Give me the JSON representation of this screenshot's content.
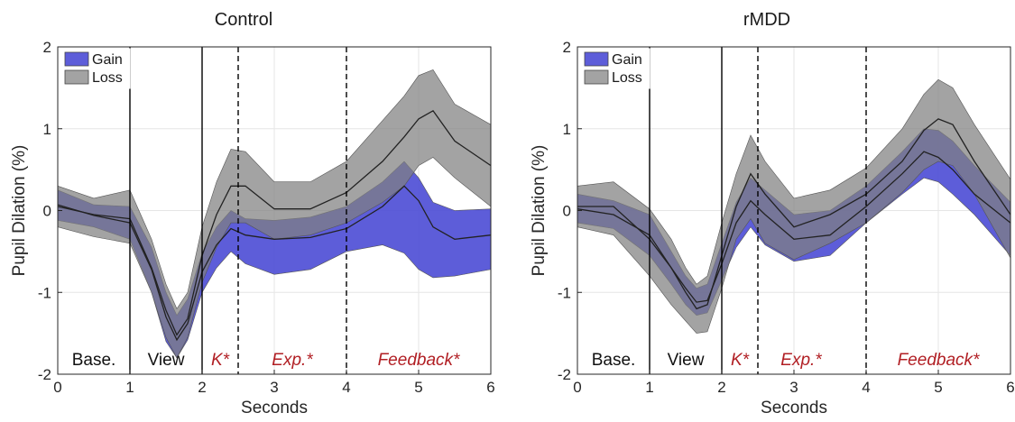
{
  "colors": {
    "gain": "#4f4fd6",
    "loss": "#7f7f7f",
    "phase_label_red": "#b11f24",
    "mean_line": "#222222"
  },
  "chart_data": [
    {
      "type": "area",
      "title": "Control",
      "xlabel": "Seconds",
      "ylabel": "Pupil Dilation (%)",
      "xlim": [
        0,
        6
      ],
      "ylim": [
        -2,
        2
      ],
      "xticks": [
        "0",
        "1",
        "2",
        "3",
        "4",
        "5",
        "6"
      ],
      "yticks": [
        "-2",
        "-1",
        "0",
        "1",
        "2"
      ],
      "grid": true,
      "legend": {
        "position": "top-left",
        "entries": [
          "Gain",
          "Loss"
        ]
      },
      "vlines": [
        {
          "x": 1,
          "style": "solid"
        },
        {
          "x": 2,
          "style": "solid"
        },
        {
          "x": 2.5,
          "style": "dashed"
        },
        {
          "x": 4,
          "style": "dashed"
        }
      ],
      "phase_labels": [
        {
          "text": "Base.",
          "x": 0.5,
          "color": "black"
        },
        {
          "text": "View",
          "x": 1.5,
          "color": "black"
        },
        {
          "text": "K*",
          "x": 2.25,
          "color": "red"
        },
        {
          "text": "Exp.*",
          "x": 3.25,
          "color": "red"
        },
        {
          "text": "Feedback*",
          "x": 5.0,
          "color": "red"
        }
      ],
      "x": [
        0,
        0.5,
        1.0,
        1.3,
        1.5,
        1.65,
        1.8,
        2.0,
        2.2,
        2.4,
        2.6,
        3.0,
        3.5,
        4.0,
        4.5,
        4.8,
        5.0,
        5.2,
        5.5,
        6.0
      ],
      "series": [
        {
          "name": "Gain",
          "mean": [
            0.07,
            -0.06,
            -0.15,
            -0.72,
            -1.3,
            -1.58,
            -1.38,
            -0.75,
            -0.42,
            -0.22,
            -0.3,
            -0.35,
            -0.33,
            -0.22,
            0.05,
            0.3,
            0.12,
            -0.2,
            -0.35,
            -0.3
          ],
          "upper": [
            0.25,
            0.07,
            0.05,
            -0.45,
            -1.0,
            -1.28,
            -1.08,
            -0.52,
            -0.2,
            0.0,
            -0.1,
            -0.12,
            -0.08,
            0.05,
            0.35,
            0.6,
            0.4,
            0.1,
            0.0,
            0.02
          ],
          "lower": [
            -0.12,
            -0.2,
            -0.35,
            -1.0,
            -1.6,
            -1.8,
            -1.58,
            -1.0,
            -0.7,
            -0.5,
            -0.65,
            -0.78,
            -0.72,
            -0.5,
            -0.42,
            -0.52,
            -0.72,
            -0.82,
            -0.8,
            -0.72
          ]
        },
        {
          "name": "Loss",
          "mean": [
            0.05,
            -0.05,
            -0.1,
            -0.7,
            -1.22,
            -1.52,
            -1.32,
            -0.55,
            -0.05,
            0.3,
            0.3,
            0.02,
            0.02,
            0.22,
            0.6,
            0.9,
            1.12,
            1.22,
            0.85,
            0.55
          ],
          "upper": [
            0.3,
            0.15,
            0.25,
            -0.35,
            -0.9,
            -1.2,
            -1.0,
            -0.2,
            0.35,
            0.75,
            0.72,
            0.35,
            0.35,
            0.6,
            1.1,
            1.4,
            1.65,
            1.72,
            1.3,
            1.05
          ],
          "lower": [
            -0.2,
            -0.32,
            -0.4,
            -1.0,
            -1.55,
            -1.8,
            -1.55,
            -0.88,
            -0.45,
            -0.15,
            -0.15,
            -0.35,
            -0.3,
            -0.15,
            0.1,
            0.3,
            0.55,
            0.65,
            0.4,
            0.05
          ]
        }
      ]
    },
    {
      "type": "area",
      "title": "rMDD",
      "xlabel": "Seconds",
      "ylabel": "Pupil Dilation (%)",
      "xlim": [
        0,
        6
      ],
      "ylim": [
        -2,
        2
      ],
      "xticks": [
        "0",
        "1",
        "2",
        "3",
        "4",
        "5",
        "6"
      ],
      "yticks": [
        "-2",
        "-1",
        "0",
        "1",
        "2"
      ],
      "grid": true,
      "legend": {
        "position": "top-left",
        "entries": [
          "Gain",
          "Loss"
        ]
      },
      "vlines": [
        {
          "x": 1,
          "style": "solid"
        },
        {
          "x": 2,
          "style": "solid"
        },
        {
          "x": 2.5,
          "style": "dashed"
        },
        {
          "x": 4,
          "style": "dashed"
        }
      ],
      "phase_labels": [
        {
          "text": "Base.",
          "x": 0.5,
          "color": "black"
        },
        {
          "text": "View",
          "x": 1.5,
          "color": "black"
        },
        {
          "text": "K*",
          "x": 2.25,
          "color": "red"
        },
        {
          "text": "Exp.*",
          "x": 3.1,
          "color": "red"
        },
        {
          "text": "Feedback*",
          "x": 5.0,
          "color": "red"
        }
      ],
      "x": [
        0,
        0.5,
        1.0,
        1.3,
        1.5,
        1.65,
        1.8,
        2.0,
        2.2,
        2.4,
        2.6,
        3.0,
        3.5,
        4.0,
        4.5,
        4.8,
        5.0,
        5.2,
        5.5,
        6.0
      ],
      "series": [
        {
          "name": "Gain",
          "mean": [
            0.02,
            -0.05,
            -0.3,
            -0.7,
            -0.95,
            -1.12,
            -1.1,
            -0.65,
            -0.15,
            0.12,
            -0.05,
            -0.35,
            -0.3,
            0.05,
            0.45,
            0.72,
            0.65,
            0.5,
            0.2,
            -0.15
          ],
          "upper": [
            0.2,
            0.12,
            -0.05,
            -0.5,
            -0.8,
            -0.95,
            -0.9,
            -0.4,
            0.1,
            0.4,
            0.25,
            -0.05,
            0.0,
            0.3,
            0.72,
            1.0,
            0.98,
            0.85,
            0.55,
            0.1
          ],
          "lower": [
            -0.15,
            -0.22,
            -0.55,
            -0.9,
            -1.15,
            -1.28,
            -1.25,
            -0.85,
            -0.45,
            -0.2,
            -0.42,
            -0.62,
            -0.55,
            -0.15,
            0.2,
            0.4,
            0.35,
            0.2,
            -0.05,
            -0.55
          ]
        },
        {
          "name": "Loss",
          "mean": [
            0.05,
            0.05,
            -0.35,
            -0.7,
            -1.0,
            -1.2,
            -1.15,
            -0.55,
            0.05,
            0.45,
            0.2,
            -0.2,
            -0.05,
            0.2,
            0.6,
            0.98,
            1.12,
            1.05,
            0.6,
            -0.05
          ],
          "upper": [
            0.3,
            0.35,
            0.02,
            -0.35,
            -0.7,
            -0.9,
            -0.8,
            -0.15,
            0.45,
            0.92,
            0.6,
            0.15,
            0.25,
            0.52,
            1.0,
            1.42,
            1.6,
            1.5,
            1.05,
            0.38
          ],
          "lower": [
            -0.2,
            -0.3,
            -0.8,
            -1.15,
            -1.35,
            -1.5,
            -1.48,
            -0.95,
            -0.35,
            -0.1,
            -0.4,
            -0.6,
            -0.4,
            -0.15,
            0.22,
            0.5,
            0.6,
            0.55,
            0.2,
            -0.58
          ]
        }
      ]
    }
  ]
}
